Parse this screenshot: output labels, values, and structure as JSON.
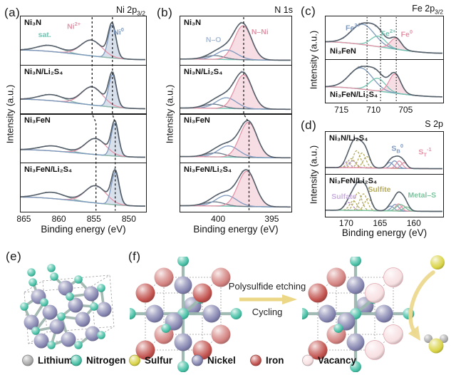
{
  "colors": {
    "pink": "#e493a8",
    "blue": "#7e98bd",
    "steel_light": "#a9bdd6",
    "teal": "#72c3b1",
    "satellite": "#93b7ad",
    "slate": "#6b7886",
    "envelope": "#545e69",
    "raw": "#a6afb7",
    "olive": "#b4aa5e",
    "purple": "#b18cc6",
    "lavender": "#c9aede",
    "green": "#7cc49e",
    "guide": "#222222",
    "arrow_yellow": "#ead57e",
    "curved_arrow": "#ecd98f"
  },
  "chart_data": [
    {
      "id": "a",
      "letter": "(a)",
      "type": "line",
      "title": "Ni 2p3/2",
      "title_parts": [
        [
          "Ni 2p"
        ],
        [
          "3/2",
          "sub"
        ]
      ],
      "xlabel": "Binding energy (eV)",
      "ylabel": "Intensity (a.u.)",
      "x_axis_direction": "decreasing",
      "x_range": [
        865.4,
        847.6
      ],
      "x_ticks": [
        865,
        860,
        855,
        850
      ],
      "guide_style": "dashed",
      "guides": [
        {
          "x_upper": 855.25,
          "x_lower": 854.7
        },
        {
          "x_upper": 852.35,
          "x_lower": 851.95
        }
      ],
      "label_pos": "top",
      "subpanels": [
        {
          "sample": "Ni₃N",
          "baseline": {
            "left": 0.3,
            "right": 0.045
          },
          "peaks": [
            {
              "name": "satellite",
              "center": 861.3,
              "width": 1.7,
              "amp": 0.16,
              "color": "satellite"
            },
            {
              "name": "Ni2+",
              "center": 855.3,
              "width": 1.5,
              "amp": 0.42,
              "color": "pink"
            },
            {
              "name": "Ni0",
              "center": 852.35,
              "width": 0.55,
              "amp": 0.88,
              "color": "blue",
              "fill": true
            }
          ],
          "annotations": [
            {
              "parts": [
                [
                  "sat."
                ]
              ],
              "color": "teal",
              "x": 14,
              "y": 30
            },
            {
              "parts": [
                [
                  "Ni"
                ],
                [
                  "2+",
                  "sup"
                ]
              ],
              "color": "pink",
              "x": 37,
              "y": 9
            },
            {
              "parts": [
                [
                  "Ni"
                ],
                [
                  "0",
                  "sup"
                ]
              ],
              "color": "blue",
              "x": 74,
              "y": 21
            }
          ]
        },
        {
          "sample": "Ni₃N/Li₂S₄",
          "baseline": {
            "left": 0.28,
            "right": 0.045
          },
          "peaks": [
            {
              "name": "satellite",
              "center": 861.0,
              "width": 1.7,
              "amp": 0.15,
              "color": "satellite"
            },
            {
              "name": "Ni2+",
              "center": 855.2,
              "width": 1.5,
              "amp": 0.45,
              "color": "pink"
            },
            {
              "name": "Ni0",
              "center": 852.3,
              "width": 0.55,
              "amp": 0.8,
              "color": "blue",
              "fill": true
            }
          ],
          "annotations": []
        },
        {
          "sample": "Ni₃FeN",
          "baseline": {
            "left": 0.26,
            "right": 0.05
          },
          "peaks": [
            {
              "name": "satellite",
              "center": 860.8,
              "width": 1.8,
              "amp": 0.14,
              "color": "satellite"
            },
            {
              "name": "Ni2+",
              "center": 854.7,
              "width": 1.45,
              "amp": 0.45,
              "color": "pink"
            },
            {
              "name": "Ni0",
              "center": 851.95,
              "width": 0.52,
              "amp": 0.92,
              "color": "blue",
              "fill": true
            }
          ],
          "annotations": []
        },
        {
          "sample": "Ni₃FeN/Li₂S₄",
          "baseline": {
            "left": 0.27,
            "right": 0.05
          },
          "peaks": [
            {
              "name": "satellite",
              "center": 860.9,
              "width": 1.8,
              "amp": 0.15,
              "color": "satellite"
            },
            {
              "name": "Ni2+",
              "center": 854.7,
              "width": 1.5,
              "amp": 0.42,
              "color": "pink"
            },
            {
              "name": "Ni0",
              "center": 851.9,
              "width": 0.55,
              "amp": 0.78,
              "color": "blue",
              "fill": true
            }
          ],
          "annotations": []
        }
      ]
    },
    {
      "id": "b",
      "letter": "(b)",
      "type": "line",
      "title": "N 1s",
      "title_parts": [
        [
          "N 1s"
        ]
      ],
      "xlabel": "Binding energy (eV)",
      "ylabel": "Intensity (a.u.)",
      "x_axis_direction": "decreasing",
      "x_range": [
        403.5,
        393.2
      ],
      "x_ticks": [
        400,
        395
      ],
      "guide_style": "dashed",
      "guides": [
        {
          "x_upper": 397.62,
          "x_lower": 397.12
        }
      ],
      "label_pos": "top",
      "subpanels": [
        {
          "sample": "Ni₃N",
          "baseline": {
            "left": 0.06,
            "right": 0.03
          },
          "peaks": [
            {
              "name": "shoulder",
              "center": 400.3,
              "width": 0.9,
              "amp": 0.1,
              "color": "slate"
            },
            {
              "name": "N-O",
              "center": 399.15,
              "width": 0.95,
              "amp": 0.25,
              "color": "blue"
            },
            {
              "name": "N-Ni",
              "center": 397.65,
              "width": 0.8,
              "amp": 0.9,
              "color": "pink",
              "fill": true
            }
          ],
          "annotations": [
            {
              "parts": [
                [
                  "N–O"
                ]
              ],
              "color": "steel_light",
              "x": 23,
              "y": 40
            },
            {
              "parts": [
                [
                  "N–Ni"
                ]
              ],
              "color": "pink",
              "x": 64,
              "y": 24
            }
          ]
        },
        {
          "sample": "Ni₃N/Li₂S₄",
          "baseline": {
            "left": 0.06,
            "right": 0.03
          },
          "peaks": [
            {
              "name": "shoulder",
              "center": 400.4,
              "width": 0.9,
              "amp": 0.1,
              "color": "slate"
            },
            {
              "name": "N-O",
              "center": 399.2,
              "width": 0.95,
              "amp": 0.26,
              "color": "blue"
            },
            {
              "name": "N-Ni",
              "center": 397.6,
              "width": 0.8,
              "amp": 0.82,
              "color": "pink",
              "fill": true
            }
          ],
          "annotations": []
        },
        {
          "sample": "Ni₃FeN",
          "baseline": {
            "left": 0.06,
            "right": 0.03
          },
          "peaks": [
            {
              "name": "shoulder",
              "center": 400.2,
              "width": 0.9,
              "amp": 0.1,
              "color": "slate"
            },
            {
              "name": "N-O",
              "center": 399.0,
              "width": 0.95,
              "amp": 0.28,
              "color": "blue"
            },
            {
              "name": "N-Ni",
              "center": 397.15,
              "width": 0.8,
              "amp": 0.88,
              "color": "pink",
              "fill": true
            }
          ],
          "annotations": []
        },
        {
          "sample": "Ni₃FeN/Li₂S₄",
          "baseline": {
            "left": 0.06,
            "right": 0.03
          },
          "peaks": [
            {
              "name": "shoulder",
              "center": 400.3,
              "width": 0.9,
              "amp": 0.1,
              "color": "slate"
            },
            {
              "name": "N-O",
              "center": 399.2,
              "width": 0.95,
              "amp": 0.26,
              "color": "blue"
            },
            {
              "name": "N-Ni",
              "center": 397.3,
              "width": 0.82,
              "amp": 0.85,
              "color": "pink",
              "fill": true
            }
          ],
          "annotations": []
        }
      ]
    },
    {
      "id": "c",
      "letter": "(c)",
      "type": "line",
      "title": "Fe 2p3/2",
      "title_parts": [
        [
          "Fe 2p"
        ],
        [
          "3/2",
          "sub"
        ]
      ],
      "xlabel": "",
      "ylabel": "Intensity (a.u.)",
      "x_axis_direction": "decreasing",
      "x_range": [
        717.4,
        699.2
      ],
      "x_ticks": [
        715,
        710,
        705
      ],
      "guide_style": "dotted",
      "guides_straight": [
        711.0,
        708.9,
        706.45
      ],
      "label_pos": "bottom",
      "subpanels": [
        {
          "sample": "Ni₃FeN",
          "baseline": {
            "left": 0.34,
            "right": 0.06
          },
          "peaks": [
            {
              "name": "Fe3+",
              "center": 711.6,
              "width": 1.8,
              "amp": 0.5,
              "color": "blue"
            },
            {
              "name": "Fe2+",
              "center": 709.2,
              "width": 1.15,
              "amp": 0.26,
              "color": "teal"
            },
            {
              "name": "Fe0",
              "center": 706.45,
              "width": 0.85,
              "amp": 0.27,
              "color": "pink",
              "fill": true
            }
          ],
          "annotations": [
            {
              "parts": [
                [
                  "Fe"
                ],
                [
                  "3+",
                  "sup"
                ]
              ],
              "color": "blue",
              "x": 17,
              "y": 13
            },
            {
              "parts": [
                [
                  "Fe"
                ],
                [
                  "2+",
                  "sup"
                ]
              ],
              "color": "teal",
              "x": 47,
              "y": 27
            },
            {
              "parts": [
                [
                  "Fe"
                ],
                [
                  "0",
                  "sup"
                ]
              ],
              "color": "pink",
              "x": 64,
              "y": 29
            }
          ]
        },
        {
          "sample": "Ni₃FeN/Li₂S₄",
          "baseline": {
            "left": 0.32,
            "right": 0.06
          },
          "peaks": [
            {
              "name": "Fe3+",
              "center": 711.9,
              "width": 1.8,
              "amp": 0.55,
              "color": "blue"
            },
            {
              "name": "Fe2+",
              "center": 709.3,
              "width": 1.2,
              "amp": 0.33,
              "color": "teal"
            },
            {
              "name": "Fe0",
              "center": 706.6,
              "width": 0.9,
              "amp": 0.5,
              "color": "pink",
              "fill": true
            }
          ],
          "annotations": []
        }
      ]
    },
    {
      "id": "d",
      "letter": "(d)",
      "type": "line",
      "title": "S 2p",
      "title_parts": [
        [
          "S 2p"
        ]
      ],
      "xlabel": "Binding energy (eV)",
      "ylabel": "Intensity (a.u.)",
      "x_axis_direction": "decreasing",
      "x_range": [
        173.0,
        155.7
      ],
      "x_ticks": [
        170,
        165,
        160
      ],
      "guide_style": "none",
      "label_pos": "top",
      "no_raw": true,
      "subpanels": [
        {
          "sample": "Ni₃N/Li₂S₄",
          "baseline": {
            "left": 0.05,
            "right": 0.03
          },
          "peaks": [
            {
              "name": "sulfate",
              "center": 169.9,
              "width": 0.5,
              "amp": 0.1,
              "color": "purple",
              "dashed": true
            },
            {
              "name": "sulfate",
              "center": 169.0,
              "width": 0.55,
              "amp": 0.12,
              "color": "purple",
              "dashed": true
            },
            {
              "name": "sulfite",
              "center": 169.2,
              "width": 0.55,
              "amp": 0.16,
              "color": "olive",
              "dashed": true
            },
            {
              "name": "sulfite",
              "center": 168.4,
              "width": 0.55,
              "amp": 0.3,
              "color": "olive",
              "dashed": true
            },
            {
              "name": "sulfite",
              "center": 167.6,
              "width": 0.55,
              "amp": 0.26,
              "color": "olive",
              "dashed": true
            },
            {
              "name": "sulfite",
              "center": 166.9,
              "width": 0.55,
              "amp": 0.2,
              "color": "olive",
              "dashed": true
            },
            {
              "name": "SB0",
              "center": 163.5,
              "width": 0.5,
              "amp": 0.1,
              "color": "blue"
            },
            {
              "name": "SB0",
              "center": 162.8,
              "width": 0.5,
              "amp": 0.13,
              "color": "blue"
            },
            {
              "name": "ST-1",
              "center": 162.1,
              "width": 0.45,
              "amp": 0.13,
              "color": "pink"
            },
            {
              "name": "ST-1",
              "center": 161.4,
              "width": 0.45,
              "amp": 0.1,
              "color": "pink"
            }
          ],
          "annotations": [
            {
              "parts": [
                [
                  "S"
                ],
                [
                  "B",
                  "sub"
                ],
                [
                  "0",
                  "sup"
                ]
              ],
              "color": "blue",
              "x": 56,
              "y": 26
            },
            {
              "parts": [
                [
                  "S"
                ],
                [
                  "T",
                  "sub"
                ],
                [
                  "-1",
                  "sup"
                ]
              ],
              "color": "pink",
              "x": 79,
              "y": 34
            }
          ]
        },
        {
          "sample": "Ni₃FeN/Li₂S₄",
          "baseline": {
            "left": 0.05,
            "right": 0.03
          },
          "peaks": [
            {
              "name": "sulfate",
              "center": 169.6,
              "width": 0.6,
              "amp": 0.13,
              "color": "purple",
              "dashed": true
            },
            {
              "name": "sulfite",
              "center": 168.9,
              "width": 0.55,
              "amp": 0.16,
              "color": "olive",
              "dashed": true
            },
            {
              "name": "sulfite",
              "center": 168.2,
              "width": 0.55,
              "amp": 0.3,
              "color": "olive",
              "dashed": true
            },
            {
              "name": "sulfite",
              "center": 167.4,
              "width": 0.55,
              "amp": 0.28,
              "color": "olive",
              "dashed": true
            },
            {
              "name": "sulfite",
              "center": 166.7,
              "width": 0.55,
              "amp": 0.2,
              "color": "olive",
              "dashed": true
            },
            {
              "name": "SB0",
              "center": 163.4,
              "width": 0.5,
              "amp": 0.08,
              "color": "blue"
            },
            {
              "name": "SB0",
              "center": 162.7,
              "width": 0.5,
              "amp": 0.11,
              "color": "blue"
            },
            {
              "name": "ST-1",
              "center": 162.2,
              "width": 0.45,
              "amp": 0.12,
              "color": "pink"
            },
            {
              "name": "ST-1",
              "center": 161.5,
              "width": 0.45,
              "amp": 0.09,
              "color": "pink"
            },
            {
              "name": "Metal-S",
              "center": 161.9,
              "width": 0.65,
              "amp": 0.11,
              "color": "green"
            },
            {
              "name": "Metal-S",
              "center": 161.0,
              "width": 0.5,
              "amp": 0.07,
              "color": "green"
            }
          ],
          "annotations": [
            {
              "parts": [
                [
                  "Sulfate"
                ]
              ],
              "color": "lavender",
              "x": 5,
              "y": 44
            },
            {
              "parts": [
                [
                  "Sulfite"
                ]
              ],
              "color": "olive",
              "x": 36,
              "y": 26
            },
            {
              "parts": [
                [
                  "Metal–S"
                ]
              ],
              "color": "green",
              "x": 70,
              "y": 40
            }
          ]
        }
      ]
    }
  ],
  "structures": {
    "e": {
      "letter": "(e)"
    },
    "f": {
      "letter": "(f)",
      "arrow_label_top": "Polysulfide etching",
      "arrow_label_bottom": "Cycling"
    }
  },
  "legend": {
    "items": [
      {
        "label": "Lithium",
        "color": "#a9a9a9"
      },
      {
        "label": "Nitrogen",
        "color": "#45bfa4"
      },
      {
        "label": "Sulfur",
        "color": "#d9d345"
      },
      {
        "label": "Nickel",
        "color": "#8585b1"
      },
      {
        "label": "Iron",
        "color": "#c2524e"
      },
      {
        "label": "Vacancy",
        "color": "#f7dfe1"
      }
    ]
  }
}
